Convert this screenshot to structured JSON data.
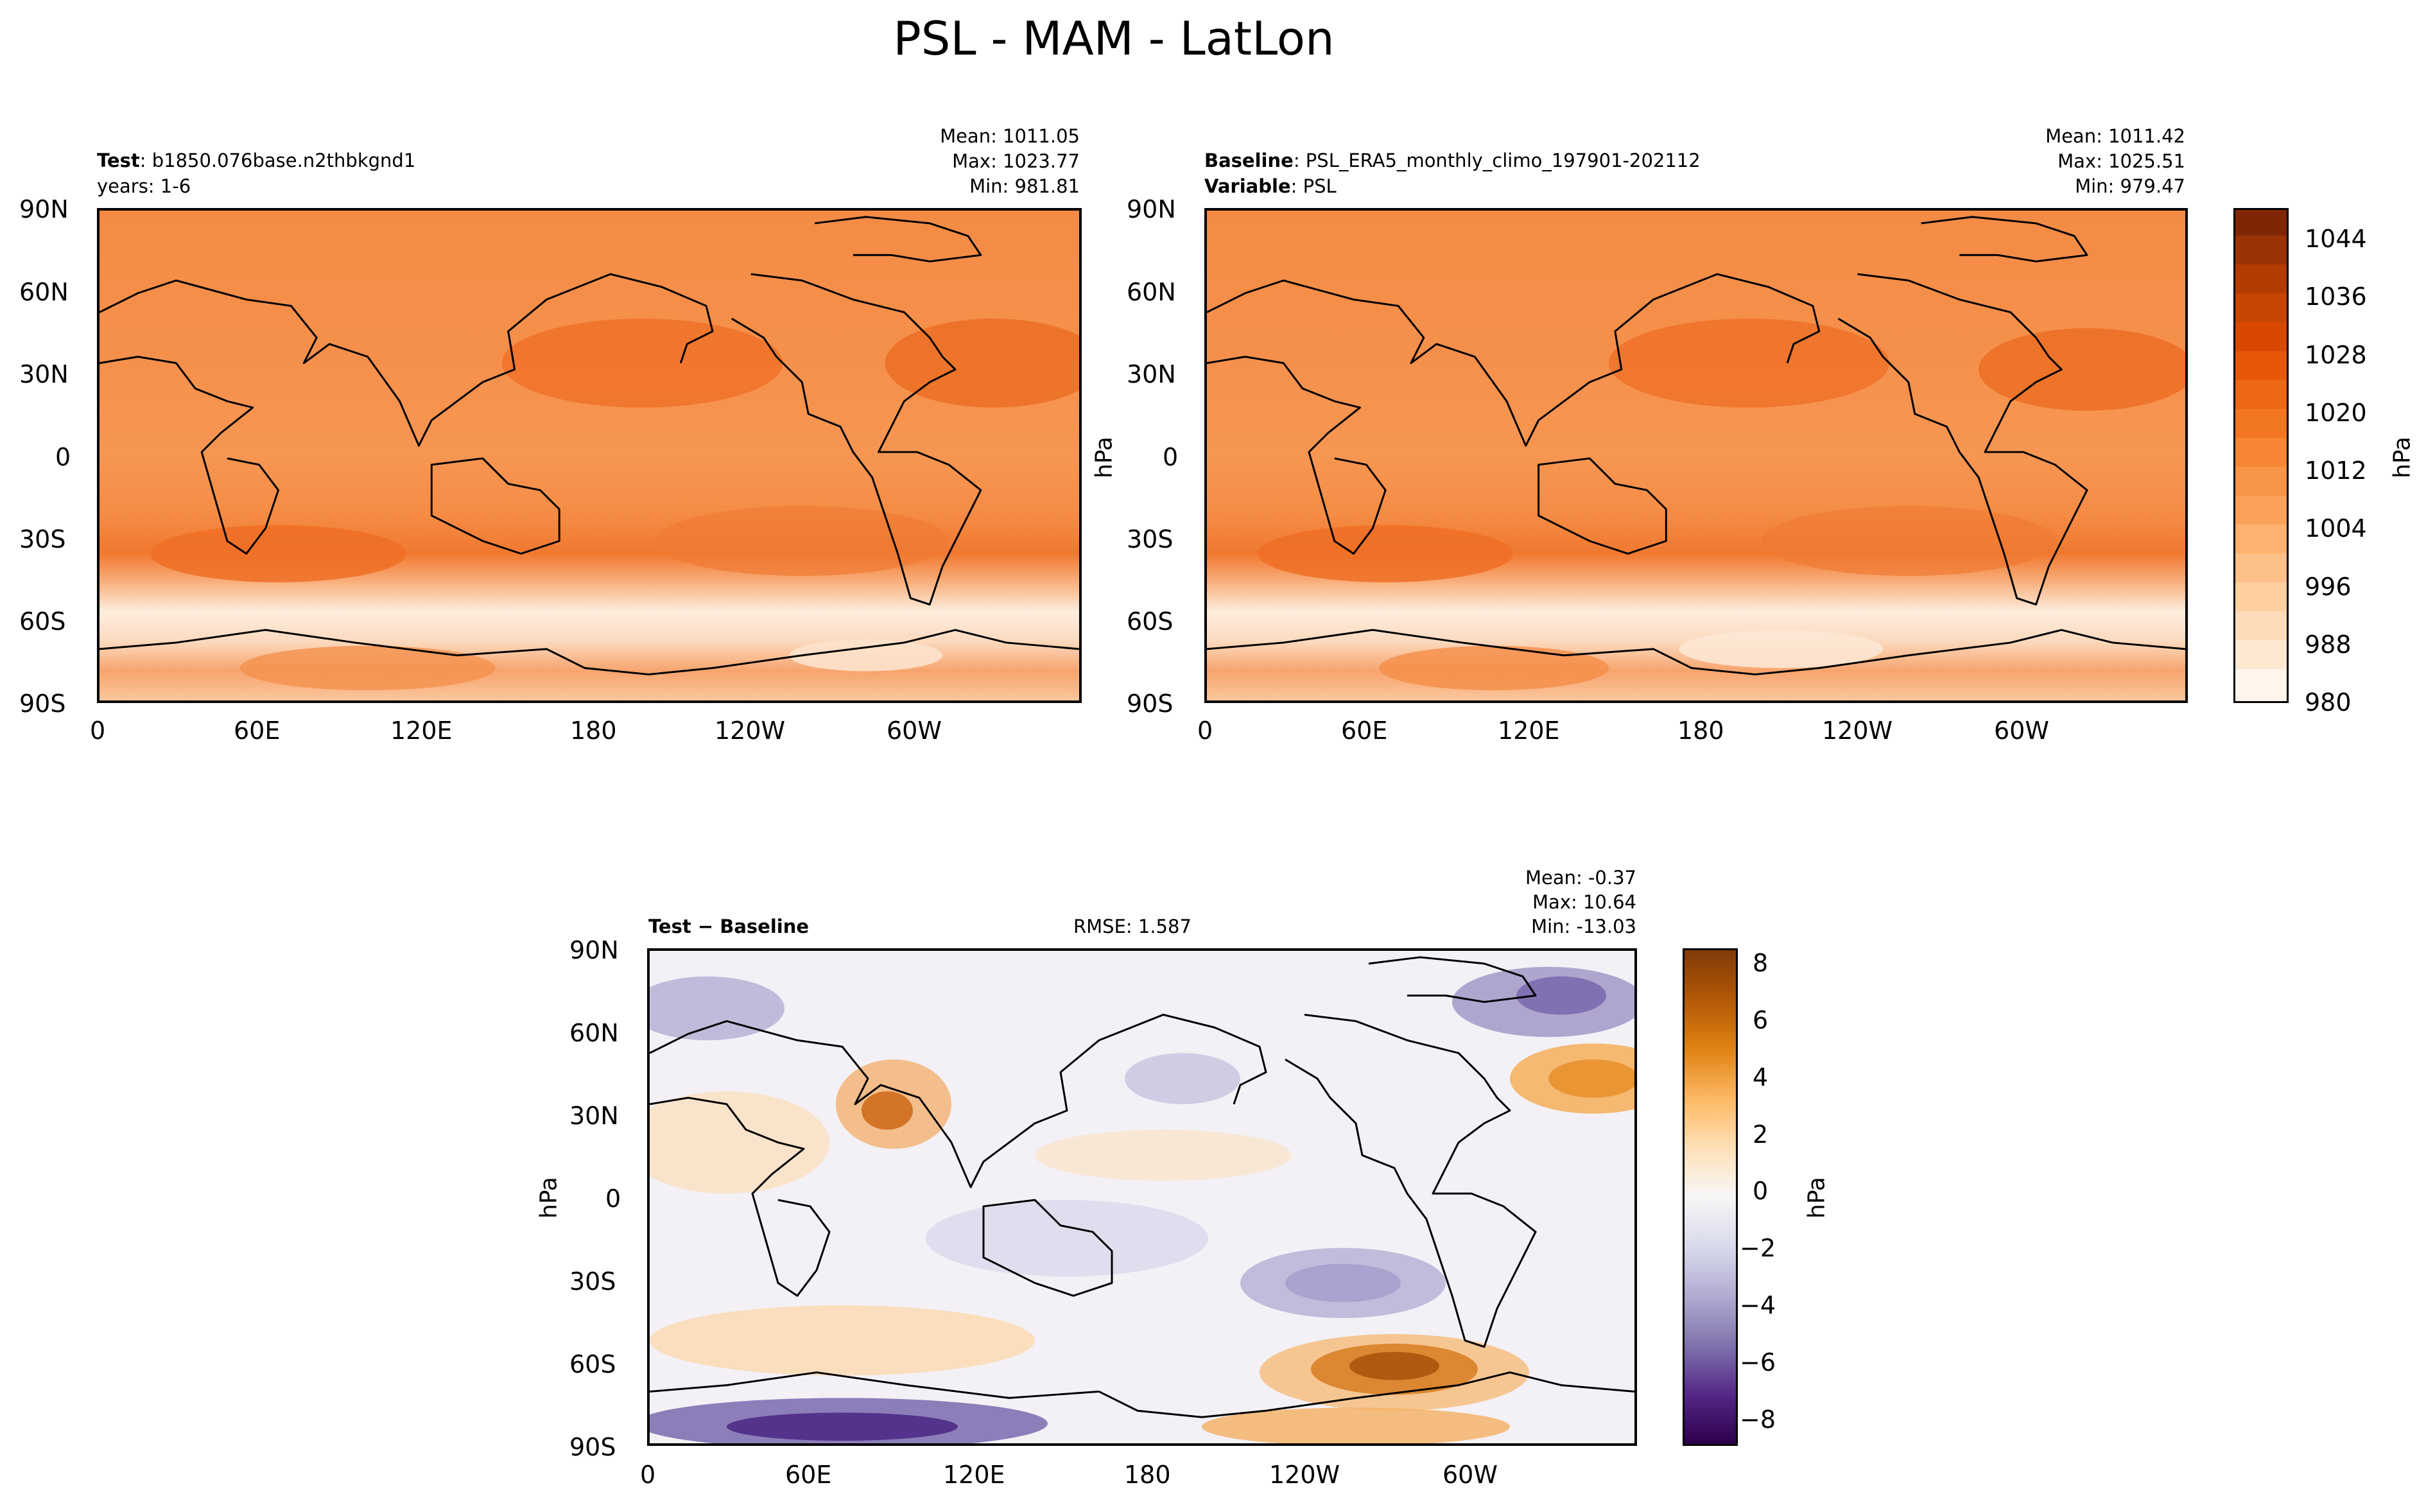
{
  "figure": {
    "title": "PSL - MAM - LatLon"
  },
  "panels": {
    "test": {
      "label_bold": "Test",
      "label_rest": ": b1850.076base.n2thbkgnd1",
      "sub": "years: 1-6",
      "mean": "Mean: 1011.05",
      "max": "Max: 1023.77",
      "min": "Min: 981.81"
    },
    "baseline": {
      "label_bold": "Baseline",
      "label_rest": ": PSL_ERA5_monthly_climo_197901-202112",
      "sub_bold": "Variable",
      "sub_rest": ": PSL",
      "mean": "Mean: 1011.42",
      "max": "Max: 1025.51",
      "min": "Min: 979.47",
      "ylabel": "hPa"
    },
    "diff": {
      "label": "Test − Baseline",
      "rmse": "RMSE: 1.587",
      "mean": "Mean: -0.37",
      "max": "Max: 10.64",
      "min": "Min: -13.03",
      "ylabel": "hPa"
    }
  },
  "axes": {
    "lat_ticks": [
      "90N",
      "60N",
      "30N",
      "0",
      "30S",
      "60S",
      "90S"
    ],
    "lon_ticks": [
      "0",
      "60E",
      "120E",
      "180",
      "120W",
      "60W"
    ]
  },
  "colorbars": {
    "main": {
      "label": "hPa",
      "ticks": [
        "1044",
        "1036",
        "1028",
        "1020",
        "1012",
        "1004",
        "996",
        "988",
        "980"
      ],
      "colormap": "Oranges",
      "colors": [
        "#fff5eb",
        "#fee6ce",
        "#fdd0a2",
        "#fdae6b",
        "#fd8d3c",
        "#f16913",
        "#d94801",
        "#a63603",
        "#7f2704"
      ]
    },
    "diff": {
      "label": "hPa",
      "ticks": [
        "8",
        "6",
        "4",
        "2",
        "0",
        "−2",
        "−4",
        "−6",
        "−8"
      ],
      "colormap": "PuOr_r",
      "colors": [
        "#2d004b",
        "#542788",
        "#8073ac",
        "#b2abd2",
        "#d8daeb",
        "#f7f7f7",
        "#fee0b6",
        "#fdb863",
        "#e08214",
        "#b35806",
        "#7f3b08"
      ]
    }
  },
  "colors": {
    "ocean_mid": "#f58d47",
    "high_pressure": "#ea6a22",
    "antarctic": "#fdebdc",
    "coast": "#000000"
  }
}
